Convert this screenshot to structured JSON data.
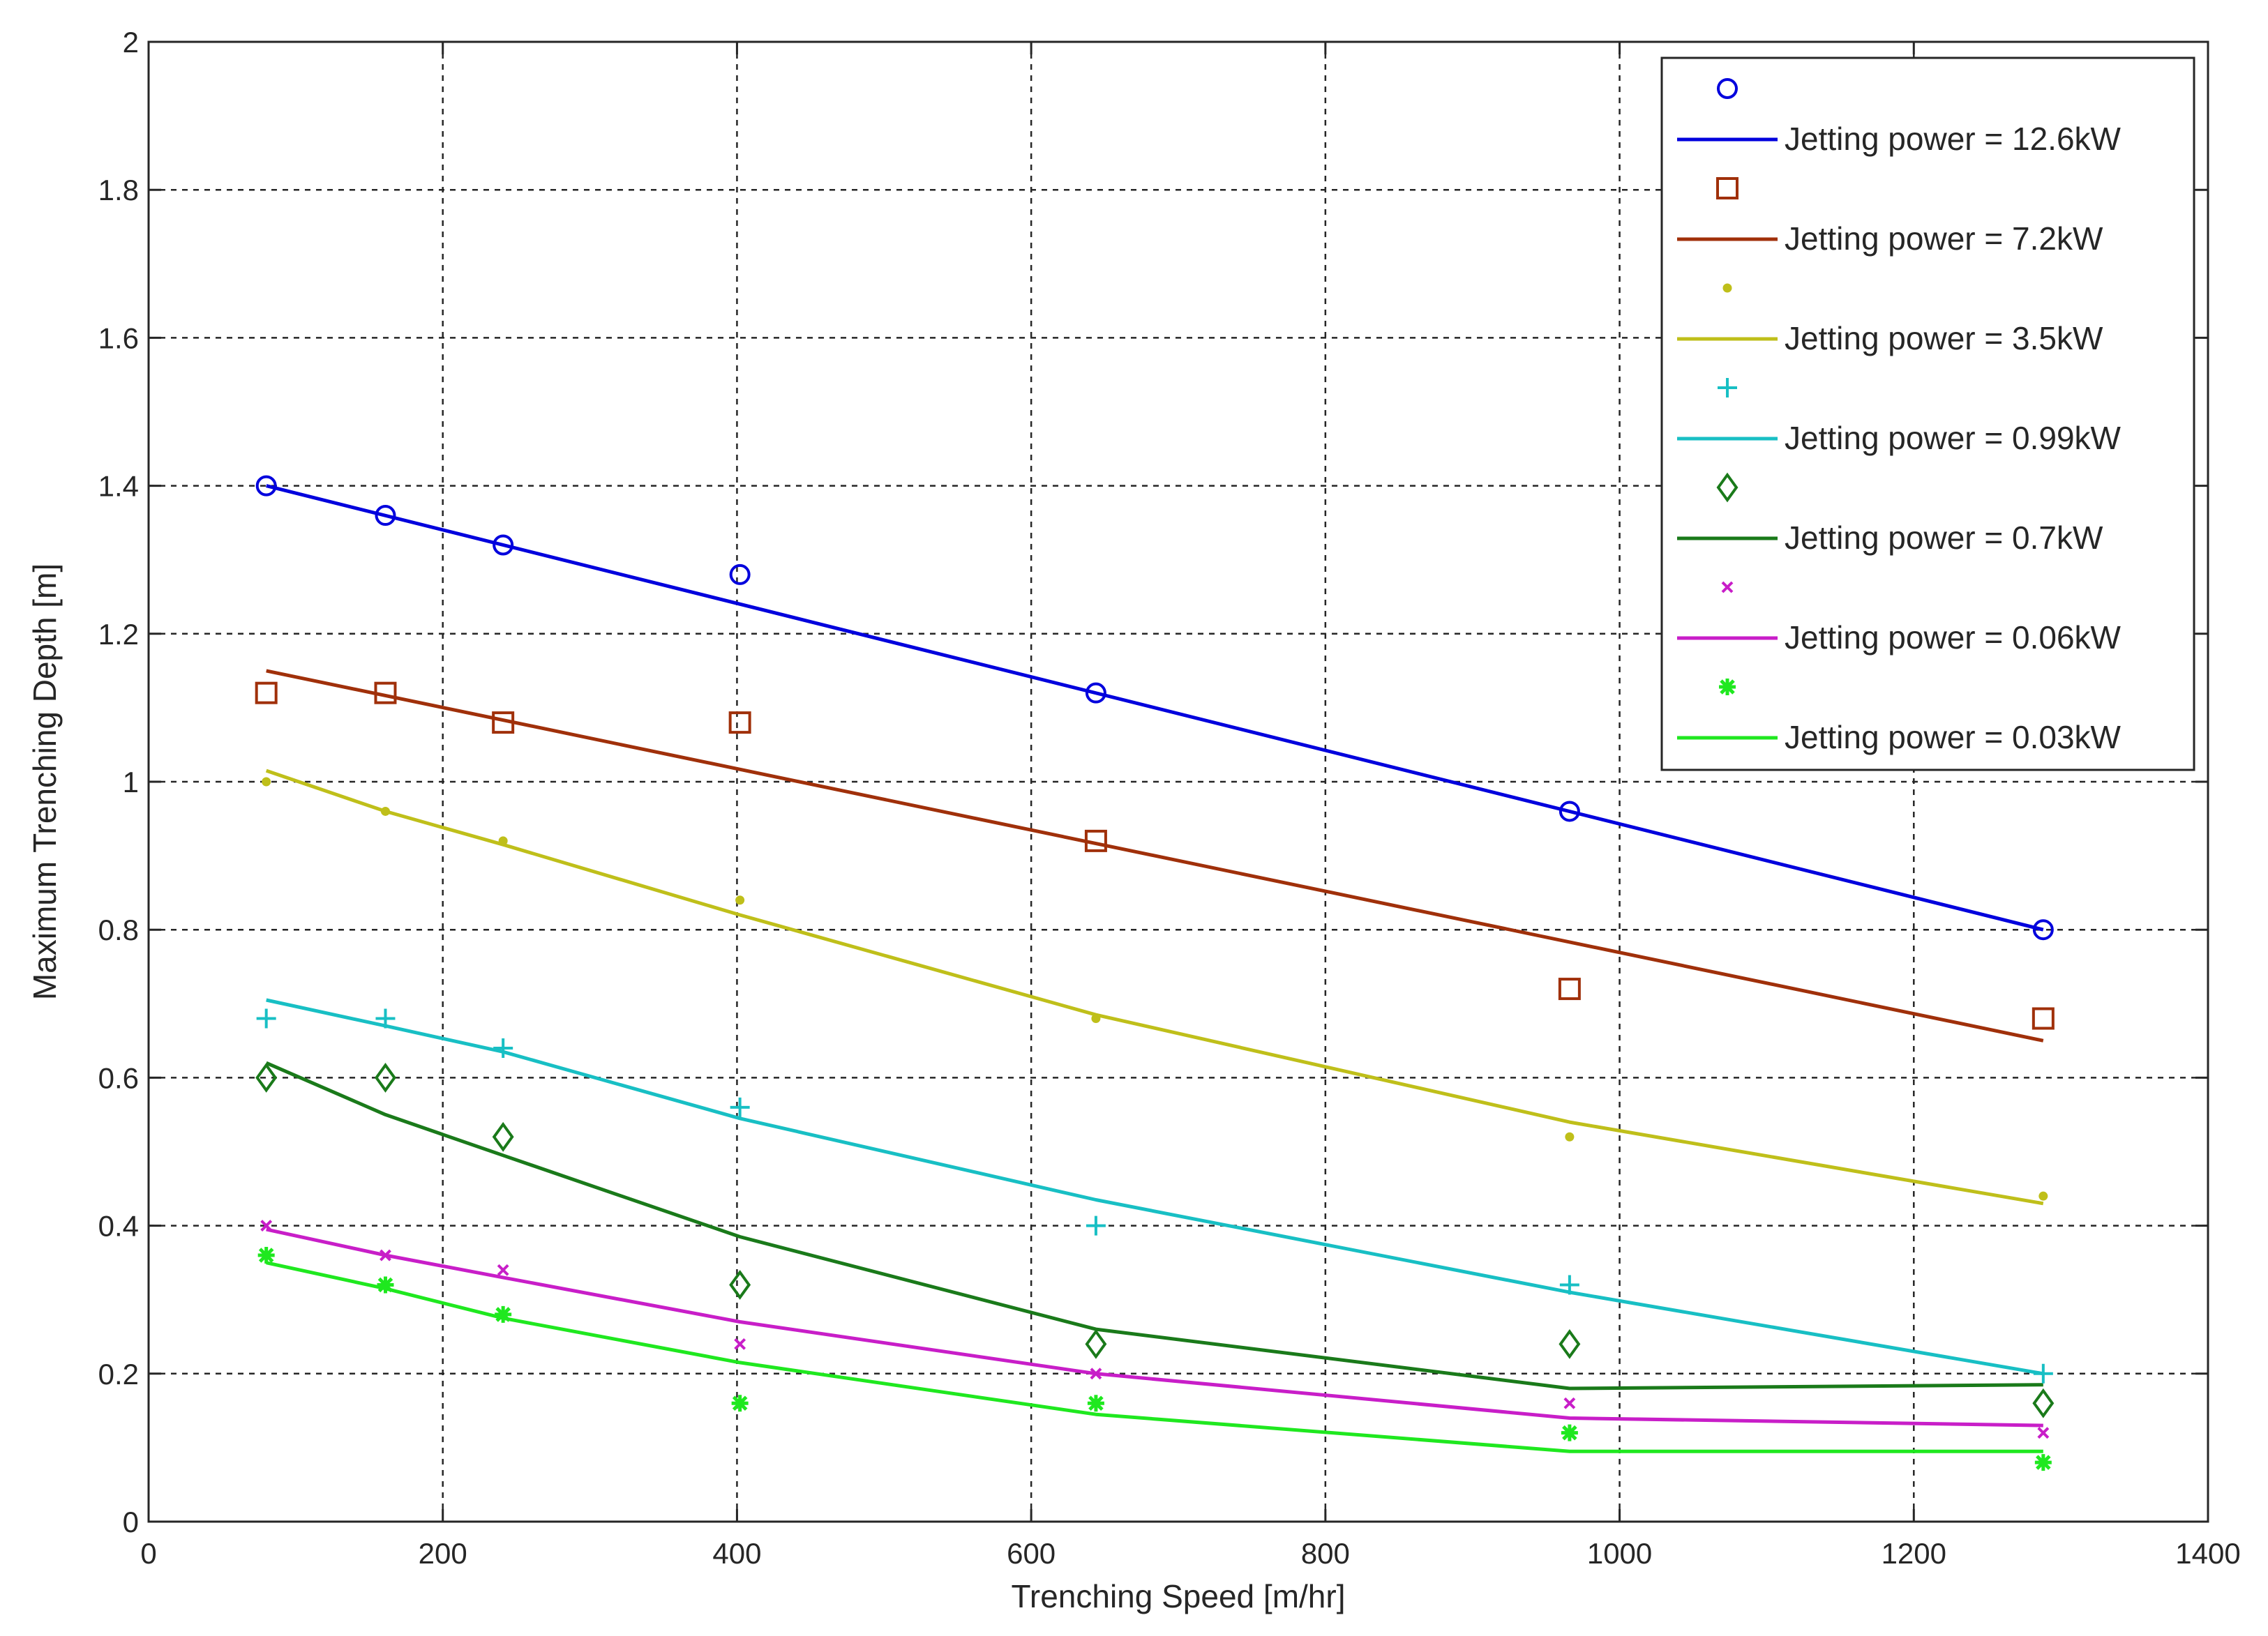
{
  "chart_data": {
    "type": "scatter",
    "title": "",
    "xlabel": "Trenching Speed [m/hr]",
    "ylabel": "Maximum Trenching Depth [m]",
    "xlim": [
      0,
      1400
    ],
    "ylim": [
      0,
      2
    ],
    "xticks": [
      0,
      200,
      400,
      600,
      800,
      1000,
      1200,
      1400
    ],
    "yticks": [
      0,
      0.2,
      0.4,
      0.6,
      0.8,
      1,
      1.2,
      1.4,
      1.6,
      1.8,
      2
    ],
    "grid": true,
    "legend_position": "top-right",
    "series": [
      {
        "name": "Jetting power = 12.6kW",
        "color": "#0000dd",
        "marker": "circle",
        "points": {
          "x": [
            80,
            161,
            241,
            402,
            644,
            966,
            1288
          ],
          "y": [
            1.4,
            1.36,
            1.32,
            1.28,
            1.12,
            0.96,
            0.8
          ]
        },
        "fit": {
          "x": [
            80,
            1288
          ],
          "y": [
            1.4,
            0.8
          ]
        }
      },
      {
        "name": "Jetting power = 7.2kW",
        "color": "#a0300a",
        "marker": "square",
        "points": {
          "x": [
            80,
            161,
            241,
            402,
            644,
            966,
            1288
          ],
          "y": [
            1.12,
            1.12,
            1.08,
            1.08,
            0.92,
            0.72,
            0.68
          ]
        },
        "fit": {
          "x": [
            80,
            1288
          ],
          "y": [
            1.15,
            0.65
          ]
        }
      },
      {
        "name": "Jetting power = 3.5kW",
        "color": "#bfbf1a",
        "marker": "dot",
        "points": {
          "x": [
            80,
            161,
            241,
            402,
            644,
            966,
            1288
          ],
          "y": [
            1.0,
            0.96,
            0.92,
            0.84,
            0.68,
            0.52,
            0.44
          ]
        },
        "fit": {
          "x": [
            80,
            161,
            241,
            402,
            644,
            966,
            1288
          ],
          "y": [
            1.015,
            0.96,
            0.915,
            0.82,
            0.685,
            0.54,
            0.43
          ]
        }
      },
      {
        "name": "Jetting power = 0.99kW",
        "color": "#18bfc4",
        "marker": "plus",
        "points": {
          "x": [
            80,
            161,
            241,
            402,
            644,
            966,
            1288
          ],
          "y": [
            0.68,
            0.68,
            0.64,
            0.56,
            0.4,
            0.32,
            0.2
          ]
        },
        "fit": {
          "x": [
            80,
            161,
            241,
            402,
            644,
            966,
            1288
          ],
          "y": [
            0.705,
            0.67,
            0.635,
            0.545,
            0.435,
            0.31,
            0.2
          ]
        }
      },
      {
        "name": "Jetting power = 0.7kW",
        "color": "#1a7a1a",
        "marker": "diamond",
        "points": {
          "x": [
            80,
            161,
            241,
            402,
            644,
            966,
            1288
          ],
          "y": [
            0.6,
            0.6,
            0.52,
            0.32,
            0.24,
            0.24,
            0.16
          ]
        },
        "fit": {
          "x": [
            80,
            161,
            241,
            402,
            644,
            966,
            1288
          ],
          "y": [
            0.62,
            0.55,
            0.495,
            0.385,
            0.26,
            0.18,
            0.185
          ]
        }
      },
      {
        "name": "Jetting power = 0.06kW",
        "color": "#c81ec8",
        "marker": "x",
        "points": {
          "x": [
            80,
            161,
            241,
            402,
            644,
            966,
            1288
          ],
          "y": [
            0.4,
            0.36,
            0.34,
            0.24,
            0.2,
            0.16,
            0.12
          ]
        },
        "fit": {
          "x": [
            80,
            161,
            241,
            402,
            644,
            966,
            1288
          ],
          "y": [
            0.395,
            0.36,
            0.33,
            0.27,
            0.2,
            0.14,
            0.13
          ]
        }
      },
      {
        "name": "Jetting power = 0.03kW",
        "color": "#1fe81f",
        "marker": "star",
        "points": {
          "x": [
            80,
            161,
            241,
            402,
            644,
            966,
            1288
          ],
          "y": [
            0.36,
            0.32,
            0.28,
            0.16,
            0.16,
            0.12,
            0.08
          ]
        },
        "fit": {
          "x": [
            80,
            161,
            241,
            402,
            644,
            966,
            1288
          ],
          "y": [
            0.35,
            0.315,
            0.275,
            0.215,
            0.145,
            0.095,
            0.095
          ]
        }
      }
    ]
  }
}
